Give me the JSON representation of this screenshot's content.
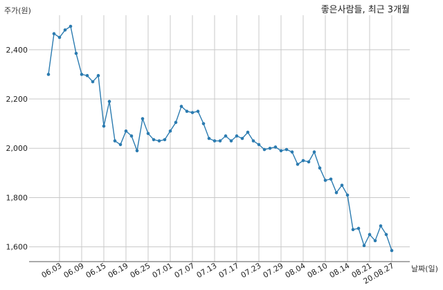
{
  "chart_data": {
    "type": "line",
    "title": "좋은사람들, 최근 3개월",
    "ylabel": "주가(원)",
    "xlabel": "날짜(일)",
    "ylim": [
      1540,
      2540
    ],
    "yticks": [
      1600,
      1800,
      2000,
      2200,
      2400
    ],
    "ytick_labels": [
      "1,600",
      "1,800",
      "2,000",
      "2,200",
      "2,400"
    ],
    "grid": true,
    "line_color": "#2b7bb0",
    "x_tick_labels": [
      "06.03",
      "06.09",
      "06.15",
      "06.19",
      "06.25",
      "07.01",
      "07.07",
      "07.13",
      "07.17",
      "07.23",
      "07.29",
      "08.04",
      "08.10",
      "08.14",
      "08.21",
      "20.08.27"
    ],
    "x_tick_indices": [
      2,
      6,
      10,
      14,
      18,
      22,
      26,
      30,
      34,
      38,
      42,
      46,
      50,
      54,
      58,
      62
    ],
    "values": [
      2300,
      2465,
      2450,
      2480,
      2495,
      2385,
      2300,
      2295,
      2270,
      2295,
      2090,
      2190,
      2030,
      2015,
      2070,
      2050,
      1990,
      2120,
      2060,
      2035,
      2030,
      2035,
      2070,
      2105,
      2170,
      2150,
      2145,
      2150,
      2100,
      2040,
      2030,
      2030,
      2050,
      2030,
      2050,
      2040,
      2065,
      2030,
      2015,
      1995,
      2000,
      2005,
      1990,
      1995,
      1985,
      1935,
      1950,
      1945,
      1985,
      1920,
      1870,
      1875,
      1820,
      1850,
      1810,
      1670,
      1675,
      1605,
      1650,
      1625,
      1685,
      1650,
      1585
    ]
  }
}
